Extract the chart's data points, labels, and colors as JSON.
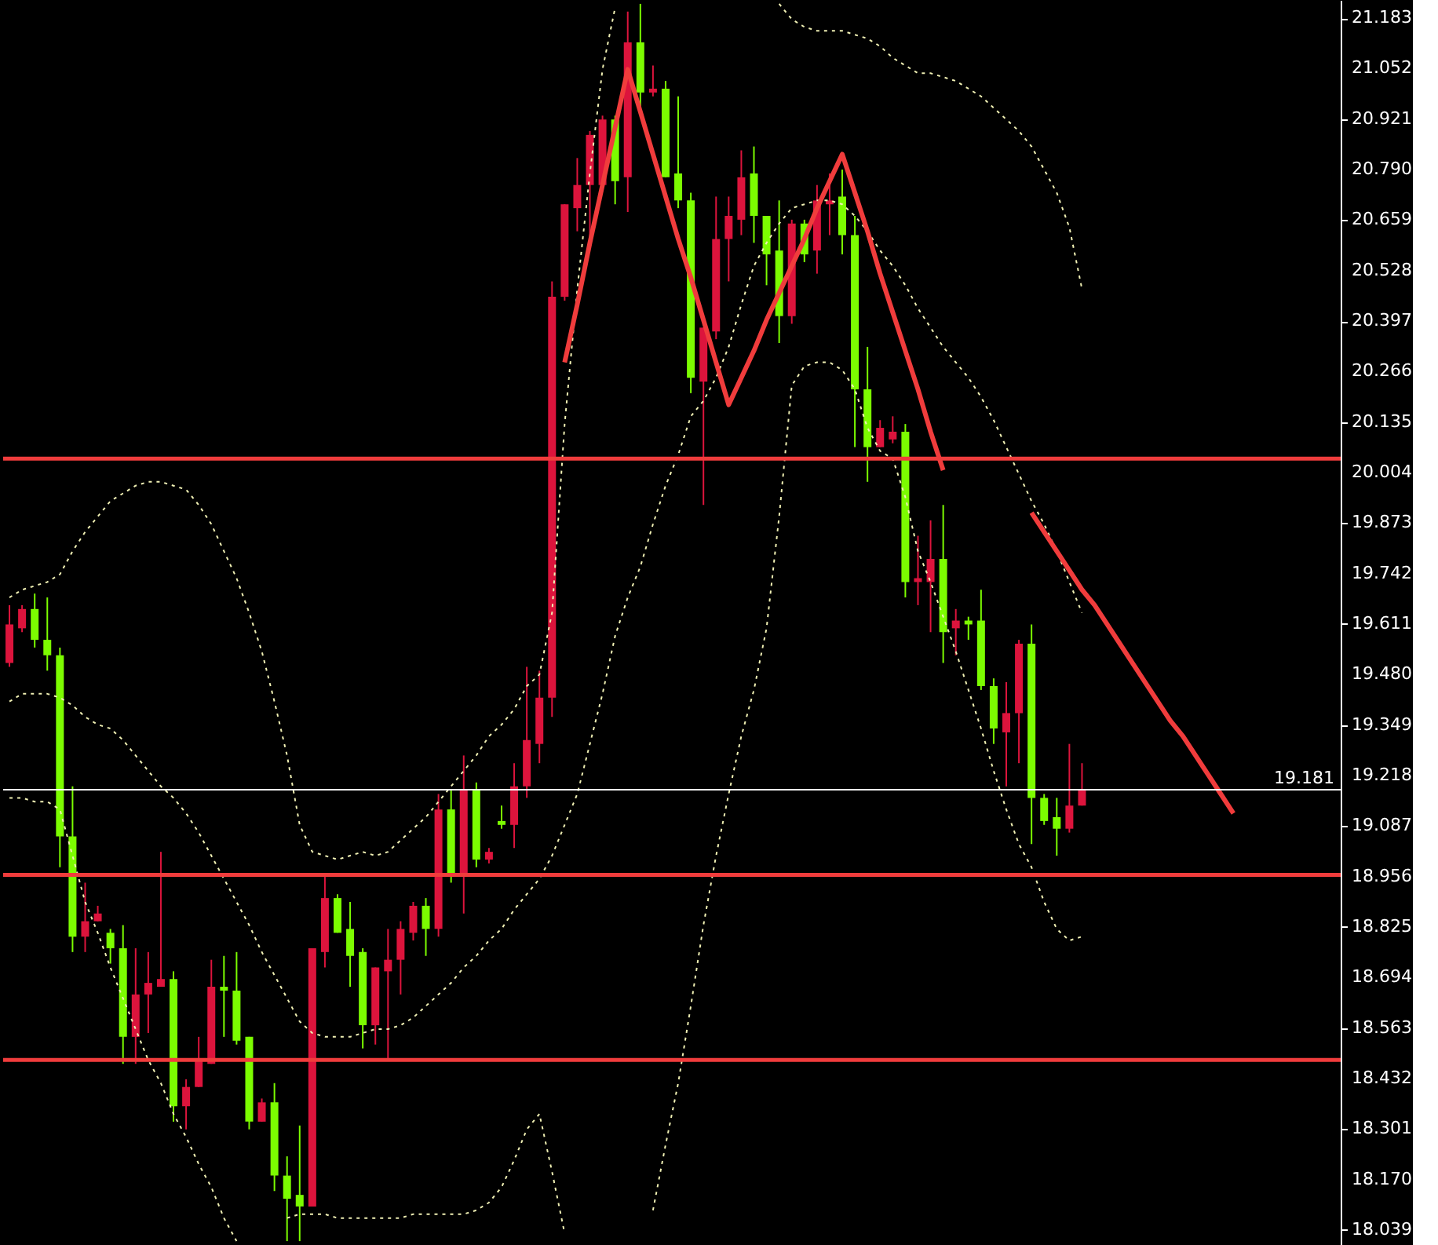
{
  "chart_data": {
    "type": "candlestick",
    "categories": [
      null,
      null,
      null,
      null,
      null,
      null,
      null,
      null,
      null,
      null,
      null,
      null,
      null,
      null,
      null,
      null,
      null,
      null,
      null,
      null,
      null,
      null,
      null,
      null,
      null,
      null,
      null,
      null,
      null,
      null,
      null,
      null,
      null,
      null,
      null,
      null,
      null,
      null,
      null,
      null,
      null,
      null,
      null,
      null,
      null,
      null,
      null,
      null,
      null,
      null,
      null,
      null,
      null,
      null,
      null,
      null,
      null,
      null,
      null,
      null,
      null,
      null,
      null,
      null,
      null,
      null,
      null,
      null,
      null,
      null,
      null,
      null,
      null,
      null,
      null,
      null,
      null,
      null,
      null,
      null,
      null,
      null,
      null,
      null,
      null,
      null,
      null,
      null,
      null,
      null,
      null,
      null,
      null,
      null,
      null,
      null,
      null,
      null,
      null,
      null,
      null,
      null,
      null,
      null,
      null,
      null
    ],
    "ohlc": [
      [
        19.51,
        19.66,
        19.5,
        19.61
      ],
      [
        19.6,
        19.66,
        19.59,
        19.65
      ],
      [
        19.65,
        19.69,
        19.55,
        19.57
      ],
      [
        19.57,
        19.68,
        19.49,
        19.53
      ],
      [
        19.53,
        19.55,
        18.98,
        19.06
      ],
      [
        19.06,
        19.19,
        18.76,
        18.8
      ],
      [
        18.8,
        18.94,
        18.76,
        18.84
      ],
      [
        18.84,
        18.88,
        18.84,
        18.86
      ],
      [
        18.81,
        18.82,
        18.73,
        18.77
      ],
      [
        18.77,
        18.83,
        18.47,
        18.54
      ],
      [
        18.54,
        18.77,
        18.47,
        18.65
      ],
      [
        18.65,
        18.76,
        18.55,
        18.68
      ],
      [
        18.67,
        19.02,
        18.67,
        18.69
      ],
      [
        18.69,
        18.71,
        18.32,
        18.36
      ],
      [
        18.36,
        18.43,
        18.3,
        18.41
      ],
      [
        18.41,
        18.54,
        18.41,
        18.48
      ],
      [
        18.47,
        18.74,
        18.47,
        18.67
      ],
      [
        18.67,
        18.75,
        18.54,
        18.66
      ],
      [
        18.66,
        18.76,
        18.52,
        18.53
      ],
      [
        18.54,
        18.54,
        18.3,
        18.32
      ],
      [
        18.32,
        18.38,
        18.32,
        18.37
      ],
      [
        18.37,
        18.42,
        18.14,
        18.18
      ],
      [
        18.18,
        18.23,
        18.01,
        18.12
      ],
      [
        18.13,
        18.31,
        18.01,
        18.1
      ],
      [
        18.1,
        18.77,
        18.1,
        18.77
      ],
      [
        18.76,
        18.96,
        18.72,
        18.9
      ],
      [
        18.9,
        18.91,
        18.81,
        18.81
      ],
      [
        18.82,
        18.89,
        18.67,
        18.75
      ],
      [
        18.76,
        18.77,
        18.51,
        18.57
      ],
      [
        18.57,
        18.72,
        18.52,
        18.72
      ],
      [
        18.71,
        18.82,
        18.48,
        18.74
      ],
      [
        18.74,
        18.84,
        18.65,
        18.82
      ],
      [
        18.81,
        18.89,
        18.79,
        18.88
      ],
      [
        18.88,
        18.9,
        18.75,
        18.82
      ],
      [
        18.82,
        19.17,
        18.8,
        19.13
      ],
      [
        19.13,
        19.18,
        18.94,
        18.96
      ],
      [
        18.96,
        19.27,
        18.86,
        19.18
      ],
      [
        19.18,
        19.2,
        18.98,
        19.0
      ],
      [
        19.0,
        19.03,
        18.99,
        19.02
      ],
      [
        19.1,
        19.14,
        19.08,
        19.09
      ],
      [
        19.09,
        19.25,
        19.03,
        19.19
      ],
      [
        19.19,
        19.5,
        19.16,
        19.31
      ],
      [
        19.3,
        19.49,
        19.25,
        19.42
      ],
      [
        19.42,
        20.5,
        19.37,
        20.46
      ],
      [
        20.46,
        20.7,
        20.45,
        20.7
      ],
      [
        20.69,
        20.82,
        20.63,
        20.75
      ],
      [
        20.75,
        20.89,
        20.59,
        20.88
      ],
      [
        20.75,
        20.93,
        20.75,
        20.92
      ],
      [
        20.92,
        20.93,
        20.7,
        20.76
      ],
      [
        20.77,
        21.2,
        20.68,
        21.12
      ],
      [
        21.12,
        21.22,
        20.95,
        20.99
      ],
      [
        20.99,
        21.06,
        20.98,
        21.0
      ],
      [
        21.0,
        21.02,
        20.77,
        20.77
      ],
      [
        20.78,
        20.98,
        20.69,
        20.71
      ],
      [
        20.71,
        20.73,
        20.21,
        20.25
      ],
      [
        20.24,
        20.38,
        19.92,
        20.38
      ],
      [
        20.37,
        20.72,
        20.35,
        20.61
      ],
      [
        20.61,
        20.72,
        20.5,
        20.67
      ],
      [
        20.66,
        20.84,
        20.62,
        20.77
      ],
      [
        20.78,
        20.85,
        20.6,
        20.67
      ],
      [
        20.67,
        20.67,
        20.49,
        20.57
      ],
      [
        20.58,
        20.71,
        20.34,
        20.41
      ],
      [
        20.41,
        20.66,
        20.39,
        20.65
      ],
      [
        20.65,
        20.66,
        20.55,
        20.57
      ],
      [
        20.58,
        20.75,
        20.52,
        20.71
      ],
      [
        20.7,
        20.78,
        20.62,
        20.71
      ],
      [
        20.72,
        20.79,
        20.57,
        20.62
      ],
      [
        20.62,
        20.67,
        20.07,
        20.22
      ],
      [
        20.22,
        20.33,
        19.98,
        20.07
      ],
      [
        20.07,
        20.14,
        20.07,
        20.12
      ],
      [
        20.09,
        20.15,
        20.08,
        20.11
      ],
      [
        20.11,
        20.13,
        19.68,
        19.72
      ],
      [
        19.72,
        19.84,
        19.66,
        19.73
      ],
      [
        19.72,
        19.88,
        19.59,
        19.78
      ],
      [
        19.78,
        19.92,
        19.51,
        19.59
      ],
      [
        19.6,
        19.65,
        19.53,
        19.62
      ],
      [
        19.62,
        19.63,
        19.57,
        19.61
      ],
      [
        19.62,
        19.7,
        19.44,
        19.45
      ],
      [
        19.45,
        19.47,
        19.3,
        19.34
      ],
      [
        19.33,
        19.46,
        19.19,
        19.38
      ],
      [
        19.38,
        19.57,
        19.25,
        19.56
      ],
      [
        19.56,
        19.61,
        19.04,
        19.16
      ],
      [
        19.16,
        19.17,
        19.09,
        19.1
      ],
      [
        19.11,
        19.16,
        19.01,
        19.08
      ],
      [
        19.08,
        19.3,
        19.07,
        19.14
      ],
      [
        19.14,
        19.25,
        19.14,
        19.18
      ],
      null,
      null,
      null,
      null,
      null,
      null,
      null,
      null,
      null,
      null,
      null,
      null,
      null,
      null,
      null,
      null,
      null,
      null,
      null,
      null
    ],
    "colors": [
      "#dc143c",
      "#dc143c",
      "#7cfc00",
      "#7cfc00",
      "#7cfc00",
      "#7cfc00",
      "#dc143c",
      "#dc143c",
      "#7cfc00",
      "#7cfc00",
      "#dc143c",
      "#dc143c",
      "#dc143c",
      "#7cfc00",
      "#dc143c",
      "#dc143c",
      "#dc143c",
      "#7cfc00",
      "#7cfc00",
      "#7cfc00",
      "#dc143c",
      "#7cfc00",
      "#7cfc00",
      "#7cfc00",
      "#dc143c",
      "#dc143c",
      "#7cfc00",
      "#7cfc00",
      "#7cfc00",
      "#dc143c",
      "#dc143c",
      "#dc143c",
      "#dc143c",
      "#7cfc00",
      "#dc143c",
      "#7cfc00",
      "#dc143c",
      "#7cfc00",
      "#dc143c",
      "#7cfc00",
      "#dc143c",
      "#dc143c",
      "#dc143c",
      "#dc143c",
      "#dc143c",
      "#dc143c",
      "#dc143c",
      "#dc143c",
      "#7cfc00",
      "#dc143c",
      "#7cfc00",
      "#dc143c",
      "#7cfc00",
      "#7cfc00",
      "#7cfc00",
      "#dc143c",
      "#dc143c",
      "#dc143c",
      "#dc143c",
      "#7cfc00",
      "#7cfc00",
      "#7cfc00",
      "#dc143c",
      "#7cfc00",
      "#dc143c",
      "#dc143c",
      "#7cfc00",
      "#7cfc00",
      "#7cfc00",
      "#dc143c",
      "#dc143c",
      "#7cfc00",
      "#dc143c",
      "#dc143c",
      "#7cfc00",
      "#dc143c",
      "#7cfc00",
      "#7cfc00",
      "#7cfc00",
      "#dc143c",
      "#dc143c",
      "#7cfc00",
      "#7cfc00",
      "#7cfc00",
      "#dc143c",
      "#dc143c",
      null,
      null,
      null,
      null,
      null,
      null,
      null,
      null,
      null,
      null,
      null,
      null,
      null,
      null,
      null,
      null,
      null,
      null,
      null,
      null
    ],
    "series": [
      {
        "type": "line",
        "color": "#f0f0b4",
        "line_style": "dotted",
        "values": [
          19.68,
          19.7,
          19.71,
          19.72,
          19.74,
          19.8,
          19.85,
          19.89,
          19.93,
          19.95,
          19.97,
          19.98,
          19.98,
          19.97,
          19.96,
          19.92,
          19.87,
          19.8,
          19.73,
          19.64,
          19.54,
          19.41,
          19.27,
          19.09,
          19.02,
          19.01,
          19.0,
          19.01,
          19.02,
          19.01,
          19.02,
          19.05,
          19.08,
          19.11,
          19.15,
          19.19,
          19.23,
          19.27,
          19.32,
          19.35,
          19.39,
          19.45,
          19.48,
          19.64,
          20.13,
          20.48,
          20.78,
          21.05,
          21.21,
          null,
          null,
          null,
          null,
          null,
          null,
          null,
          null,
          null,
          null,
          null,
          null,
          21.22,
          21.18,
          21.16,
          21.15,
          21.15,
          21.15,
          21.14,
          21.13,
          21.11,
          21.08,
          21.06,
          21.04,
          21.04,
          21.03,
          21.02,
          21.0,
          20.98,
          20.95,
          20.92,
          20.89,
          20.85,
          20.79,
          20.73,
          20.64,
          20.48,
          null,
          null,
          null,
          null,
          null,
          null,
          null,
          null,
          null,
          null,
          null,
          null,
          null,
          null,
          null,
          null,
          null,
          null,
          null,
          null
        ]
      },
      {
        "type": "line",
        "color": "#f0f0b4",
        "line_style": "dotted",
        "values": [
          19.41,
          19.43,
          19.43,
          19.43,
          19.42,
          19.4,
          19.37,
          19.35,
          19.34,
          19.31,
          19.27,
          19.23,
          19.19,
          19.16,
          19.12,
          19.07,
          19.01,
          18.95,
          18.89,
          18.83,
          18.76,
          18.7,
          18.64,
          18.58,
          18.55,
          18.54,
          18.54,
          18.54,
          18.55,
          18.56,
          18.56,
          18.57,
          18.59,
          18.62,
          18.65,
          18.68,
          18.72,
          18.75,
          18.79,
          18.82,
          18.87,
          18.91,
          18.95,
          19.01,
          19.09,
          19.17,
          19.3,
          19.43,
          19.58,
          19.68,
          19.76,
          19.87,
          19.97,
          20.05,
          20.15,
          20.19,
          20.25,
          20.33,
          20.44,
          20.54,
          20.6,
          20.65,
          20.69,
          20.7,
          20.71,
          20.71,
          20.7,
          20.67,
          20.63,
          20.58,
          20.54,
          20.49,
          20.43,
          20.38,
          20.33,
          20.29,
          20.25,
          20.2,
          20.14,
          20.07,
          20.0,
          19.93,
          19.87,
          19.8,
          19.72,
          19.64,
          null,
          null,
          null,
          null,
          null,
          null,
          null,
          null,
          null,
          null,
          null,
          null,
          null,
          null,
          null,
          null,
          null,
          null,
          null,
          null
        ]
      },
      {
        "type": "line",
        "color": "#f0f0b4",
        "line_style": "dotted",
        "values": [
          19.16,
          19.16,
          19.15,
          19.15,
          19.13,
          19.01,
          18.89,
          18.81,
          18.72,
          18.64,
          18.56,
          18.48,
          18.42,
          18.34,
          18.28,
          18.21,
          18.15,
          18.07,
          18.01,
          null,
          null,
          null,
          18.07,
          18.08,
          18.08,
          18.08,
          18.07,
          18.07,
          18.07,
          18.07,
          18.07,
          18.07,
          18.08,
          18.08,
          18.08,
          18.08,
          18.08,
          18.09,
          18.11,
          18.15,
          18.22,
          18.3,
          18.34,
          18.19,
          18.03,
          null,
          null,
          null,
          null,
          null,
          null,
          18.09,
          18.26,
          18.42,
          18.62,
          18.83,
          19.01,
          19.17,
          19.32,
          19.44,
          19.6,
          19.89,
          20.23,
          20.28,
          20.29,
          20.29,
          20.27,
          20.22,
          20.12,
          20.06,
          20.04,
          19.94,
          19.8,
          19.72,
          19.63,
          19.54,
          19.44,
          19.34,
          19.23,
          19.13,
          19.04,
          18.98,
          18.89,
          18.82,
          18.79,
          18.8,
          null,
          null,
          null,
          null,
          null,
          null,
          null,
          null,
          null,
          null,
          null,
          null,
          null,
          null,
          null,
          null,
          null,
          null,
          null,
          null
        ]
      },
      {
        "type": "line",
        "color": "#f03c3c",
        "line_style": "solid",
        "values": [
          null,
          null,
          null,
          null,
          null,
          null,
          null,
          null,
          null,
          null,
          null,
          null,
          null,
          null,
          null,
          null,
          null,
          null,
          null,
          null,
          null,
          null,
          null,
          null,
          null,
          null,
          null,
          null,
          null,
          null,
          null,
          null,
          null,
          null,
          null,
          null,
          null,
          null,
          null,
          null,
          null,
          null,
          null,
          null,
          20.29,
          20.44,
          20.6,
          20.75,
          20.9,
          21.05,
          20.94,
          20.83,
          20.72,
          20.61,
          20.51,
          20.4,
          20.29,
          20.18,
          20.25,
          20.32,
          20.4,
          20.47,
          20.54,
          20.61,
          20.69,
          20.76,
          20.83,
          20.73,
          20.63,
          20.52,
          20.42,
          20.32,
          20.22,
          20.11,
          20.01,
          null,
          null,
          null,
          null,
          null,
          null,
          null,
          null,
          null,
          null,
          null,
          null,
          null,
          null,
          null,
          null,
          null,
          null,
          null,
          null,
          null,
          null,
          null,
          null,
          null,
          null,
          null,
          null,
          null,
          null,
          null
        ]
      },
      {
        "type": "line",
        "color": "#f03c3c",
        "line_style": "solid",
        "values": [
          null,
          null,
          null,
          null,
          null,
          null,
          null,
          null,
          null,
          null,
          null,
          null,
          null,
          null,
          null,
          null,
          null,
          null,
          null,
          null,
          null,
          null,
          null,
          null,
          null,
          null,
          null,
          null,
          null,
          null,
          null,
          null,
          null,
          null,
          null,
          null,
          null,
          null,
          null,
          null,
          null,
          null,
          null,
          null,
          null,
          null,
          null,
          null,
          null,
          null,
          null,
          null,
          null,
          null,
          null,
          null,
          null,
          null,
          null,
          null,
          null,
          null,
          null,
          null,
          null,
          null,
          null,
          null,
          null,
          null,
          null,
          null,
          null,
          null,
          null,
          null,
          null,
          null,
          null,
          null,
          null,
          19.9,
          19.85,
          19.8,
          19.75,
          19.7,
          19.66,
          19.61,
          19.56,
          19.51,
          19.46,
          19.41,
          19.36,
          19.32,
          19.27,
          19.22,
          19.17,
          19.12,
          null,
          null,
          null,
          null,
          null,
          null,
          null,
          null
        ]
      }
    ],
    "ylim": [
      18.0,
      21.23
    ],
    "yticks": [
      18.039,
      {
        "value": 18.17,
        "label": "18.170"
      },
      18.301,
      18.432,
      18.563,
      18.694,
      18.825,
      18.956,
      19.087,
      19.218,
      19.349,
      {
        "value": 19.48,
        "label": "19.480"
      },
      19.611,
      19.742,
      19.873,
      20.004,
      20.135,
      20.266,
      20.397,
      20.528,
      20.659,
      {
        "value": 20.79,
        "label": "20.790"
      },
      20.921,
      21.052,
      21.183
    ],
    "ref_lines": [
      {
        "axis": "y",
        "value": 20.04,
        "color": "#f03c3c",
        "line_style": "solid"
      },
      {
        "axis": "y",
        "value": 18.96,
        "color": "#f03c3c",
        "line_style": "solid"
      },
      {
        "axis": "y",
        "value": 18.48,
        "color": "#f03c3c",
        "line_style": "solid"
      },
      {
        "axis": "y",
        "value": 19.181,
        "label": "19.181",
        "color": "#ffffff",
        "line_style": "solid"
      }
    ],
    "tick_labels": "y"
  }
}
